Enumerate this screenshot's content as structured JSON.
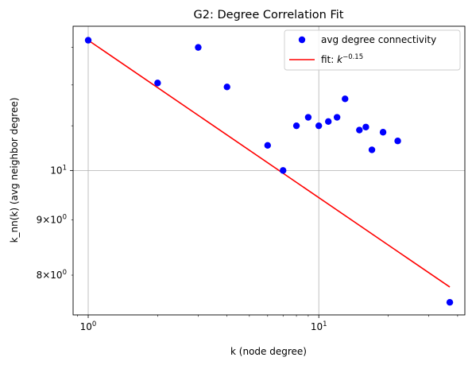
{
  "chart_data": {
    "type": "scatter",
    "title": "G2: Degree Correlation Fit",
    "xlabel": "k (node degree)",
    "ylabel": "k_nn(k) (avg neighbor degree)",
    "xscale": "log",
    "yscale": "log",
    "xlim": [
      0.86,
      43
    ],
    "ylim": [
      7.35,
      13.6
    ],
    "grid": "major",
    "legend_position": "upper right",
    "x_major_ticks": [
      {
        "value": 1,
        "label_base": "10",
        "label_exp": "0"
      },
      {
        "value": 10,
        "label_base": "10",
        "label_exp": "1"
      }
    ],
    "y_major_ticks": [
      {
        "value": 10,
        "label_base": "10",
        "label_exp": "1"
      }
    ],
    "y_minor_ticks": [
      {
        "value": 8,
        "label_mult": "8×10",
        "label_exp": "0"
      },
      {
        "value": 9,
        "label_mult": "9×10",
        "label_exp": "0"
      }
    ],
    "series": [
      {
        "name": "avg degree connectivity",
        "kind": "scatter",
        "color": "#0000ff",
        "points": [
          {
            "x": 1,
            "y": 13.2
          },
          {
            "x": 2,
            "y": 12.05
          },
          {
            "x": 3,
            "y": 13.0
          },
          {
            "x": 4,
            "y": 11.95
          },
          {
            "x": 6,
            "y": 10.55
          },
          {
            "x": 7,
            "y": 10.0
          },
          {
            "x": 8,
            "y": 11.0
          },
          {
            "x": 9,
            "y": 11.2
          },
          {
            "x": 10,
            "y": 11.0
          },
          {
            "x": 11,
            "y": 11.1
          },
          {
            "x": 12,
            "y": 11.2
          },
          {
            "x": 13,
            "y": 11.65
          },
          {
            "x": 15,
            "y": 10.9
          },
          {
            "x": 16,
            "y": 10.97
          },
          {
            "x": 17,
            "y": 10.45
          },
          {
            "x": 19,
            "y": 10.85
          },
          {
            "x": 22,
            "y": 10.65
          },
          {
            "x": 37,
            "y": 7.55
          }
        ]
      },
      {
        "name": "fit: ",
        "name_math_base": "k",
        "name_math_exp": "−0.15",
        "kind": "line",
        "color": "#ff0000",
        "exponent": -0.15,
        "points": [
          {
            "x": 1,
            "y": 13.2
          },
          {
            "x": 37,
            "y": 7.8
          }
        ]
      }
    ]
  }
}
